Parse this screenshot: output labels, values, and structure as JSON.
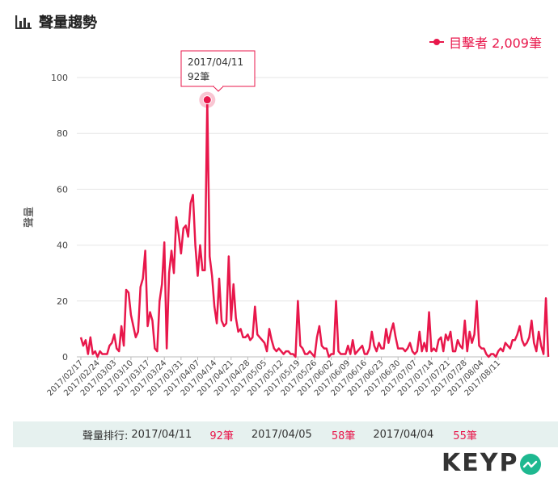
{
  "header": {
    "title": "聲量趨勢",
    "icon": "bar-chart-icon"
  },
  "legend": {
    "label": "目擊者 2,009筆",
    "color": "#e8174b"
  },
  "tooltip": {
    "date": "2017/04/11",
    "value": "92筆"
  },
  "bottom_bar": {
    "label": "聲量排行:",
    "entries": [
      {
        "date": "2017/04/11",
        "count": "92筆"
      },
      {
        "date": "2017/04/05",
        "count": "58筆"
      },
      {
        "date": "2017/04/04",
        "count": "55筆"
      }
    ]
  },
  "logo": {
    "text": "KEYP",
    "accent": "#1eb890"
  },
  "chart_data": {
    "type": "line",
    "title": "",
    "xlabel": "",
    "ylabel": "聲量",
    "ylim": [
      0,
      100
    ],
    "yticks": [
      0,
      20,
      40,
      60,
      80,
      100
    ],
    "grid": true,
    "color": "#e8174b",
    "xtick_labels": [
      "2017/02/17",
      "2017/02/24",
      "2017/03/03",
      "2017/03/10",
      "2017/03/17",
      "2017/03/24",
      "2017/03/31",
      "2017/04/07",
      "2017/04/14",
      "2017/04/21",
      "2017/04/28",
      "2017/05/05",
      "2017/05/12",
      "2017/05/19",
      "2017/05/26",
      "2017/06/02",
      "2017/06/09",
      "2017/06/16",
      "2017/06/23",
      "2017/06/30",
      "2017/07/07",
      "2017/07/14",
      "2017/07/21",
      "2017/07/28",
      "2017/08/04",
      "2017/08/11"
    ],
    "series": [
      {
        "name": "目擊者",
        "values": [
          7,
          4,
          6,
          1,
          7,
          1,
          2,
          0,
          2,
          1,
          1,
          1,
          4,
          5,
          8,
          3,
          2,
          11,
          4,
          24,
          23,
          15,
          11,
          7,
          9,
          25,
          28,
          38,
          11,
          16,
          13,
          3,
          2,
          20,
          26,
          41,
          3,
          30,
          38,
          30,
          50,
          44,
          37,
          46,
          47,
          43,
          55,
          58,
          40,
          29,
          40,
          31,
          31,
          92,
          36,
          29,
          18,
          12,
          28,
          13,
          11,
          12,
          36,
          13,
          26,
          14,
          9,
          10,
          7,
          7,
          8,
          6,
          7,
          18,
          8,
          7,
          6,
          5,
          2,
          10,
          6,
          3,
          2,
          3,
          2,
          1,
          2,
          2,
          1,
          1,
          0,
          20,
          4,
          3,
          1,
          1,
          2,
          1,
          0,
          7,
          11,
          4,
          3,
          3,
          0,
          1,
          1,
          20,
          2,
          1,
          1,
          1,
          4,
          1,
          6,
          1,
          2,
          3,
          4,
          1,
          1,
          3,
          9,
          4,
          2,
          5,
          3,
          3,
          10,
          5,
          9,
          12,
          7,
          3,
          3,
          3,
          2,
          3,
          5,
          2,
          1,
          2,
          9,
          2,
          5,
          2,
          16,
          2,
          3,
          2,
          6,
          7,
          2,
          8,
          6,
          9,
          2,
          2,
          6,
          4,
          3,
          13,
          2,
          9,
          5,
          8,
          20,
          4,
          3,
          3,
          1,
          0,
          1,
          1,
          0,
          2,
          3,
          2,
          5,
          4,
          3,
          6,
          6,
          8,
          11,
          6,
          4,
          5,
          7,
          13,
          5,
          2,
          9,
          4,
          1,
          21,
          0
        ]
      }
    ]
  }
}
